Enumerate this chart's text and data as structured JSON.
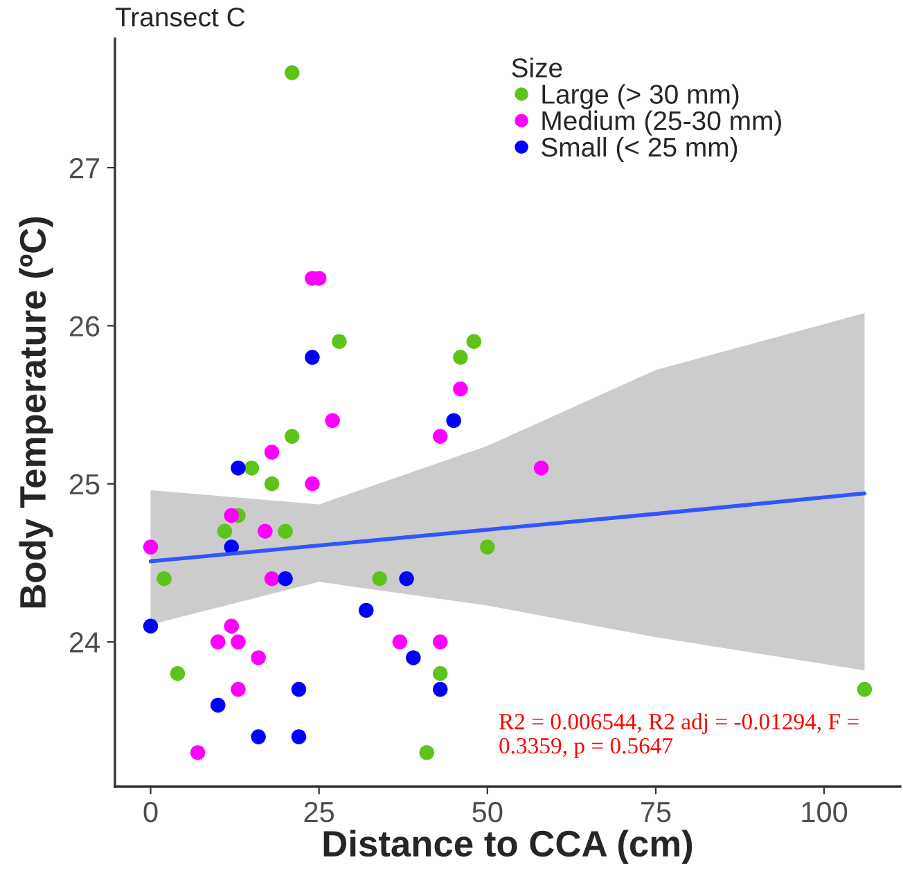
{
  "chart_data": {
    "type": "scatter",
    "title": "Transect C",
    "xlabel": "Distance to CCA (cm)",
    "ylabel": "Body Temperature (ºC)",
    "legend_title": "Size",
    "series": [
      {
        "name": "Large (> 30 mm)",
        "color": "#5ec31b",
        "x": [
          21,
          28,
          48,
          46,
          50,
          41,
          43,
          106,
          21,
          15,
          18,
          13,
          11,
          20,
          2,
          34,
          4
        ],
        "values": [
          27.6,
          25.9,
          25.9,
          25.8,
          24.6,
          23.3,
          23.8,
          23.7,
          25.3,
          25.1,
          25.0,
          24.8,
          24.7,
          24.7,
          24.4,
          24.4,
          23.8
        ]
      },
      {
        "name": "Medium (25-30 mm)",
        "color": "#ff00ff",
        "x": [
          24,
          25,
          27,
          46,
          43,
          58,
          37,
          43,
          18,
          24,
          12,
          17,
          0,
          18,
          12,
          10,
          13,
          16,
          13,
          7
        ],
        "values": [
          26.3,
          26.3,
          25.4,
          25.6,
          25.3,
          25.1,
          24.0,
          24.0,
          25.2,
          25.0,
          24.8,
          24.7,
          24.6,
          24.4,
          24.1,
          24.0,
          24.0,
          23.9,
          23.7,
          23.3
        ]
      },
      {
        "name": "Small (< 25 mm)",
        "color": "#0000ff",
        "x": [
          24,
          45,
          38,
          39,
          43,
          13,
          12,
          20,
          32,
          0,
          22,
          10,
          16,
          22
        ],
        "values": [
          25.8,
          25.4,
          24.4,
          23.9,
          23.7,
          25.1,
          24.6,
          24.4,
          24.2,
          24.1,
          23.7,
          23.6,
          23.4,
          23.4
        ]
      },
      {
        "type": "line",
        "marker": "none",
        "color": "#3355ff",
        "x": [
          0,
          25,
          50,
          75,
          106
        ],
        "values": [
          24.51,
          24.61,
          24.71,
          24.81,
          24.94
        ],
        "lower": [
          24.11,
          24.38,
          24.23,
          24.03,
          23.82
        ],
        "upper": [
          24.96,
          24.87,
          25.24,
          25.72,
          26.08
        ]
      }
    ],
    "xlim": [
      -5.3,
      111.3
    ],
    "xticks": [
      0,
      25,
      50,
      75,
      100
    ],
    "ylim": [
      23.085,
      27.815
    ],
    "yticks": [
      24,
      25,
      26,
      27
    ],
    "marker": "circle",
    "grid": false,
    "legend": "top right",
    "annotations": [
      "R2 = 0.006544, R2 adj = -0.01294, F = 0.3359, p = 0.5647"
    ]
  }
}
